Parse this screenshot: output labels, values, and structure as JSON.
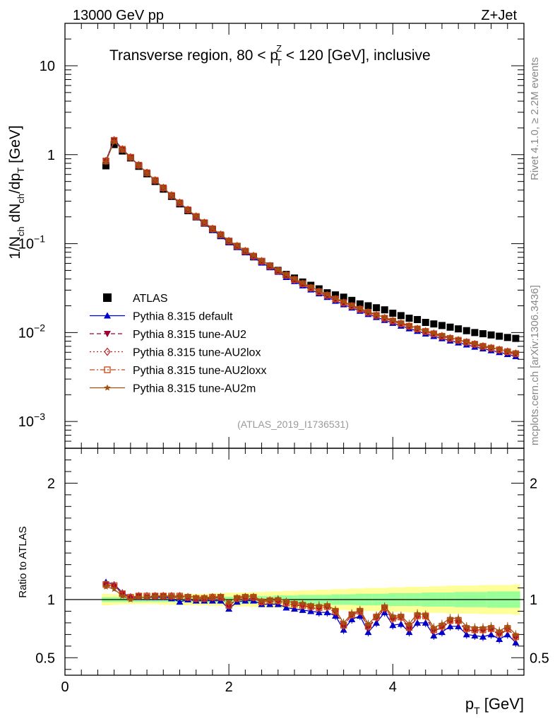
{
  "chart_data": [
    {
      "type": "scatter",
      "panel": "main",
      "yscale": "log",
      "xlim": [
        0,
        5.6
      ],
      "ylim": [
        0.0005,
        30
      ],
      "top_left_label": "13000 GeV pp",
      "top_right_label": "Z+Jet",
      "title_parts": [
        "Transverse region, 80 < p",
        "Z",
        "T",
        " < 120 [GeV], inclusive"
      ],
      "ylabel_parts": [
        "1/N",
        "ch",
        " dN",
        "ch",
        "/dp",
        "T",
        " [GeV]"
      ],
      "yticks": [
        {
          "value": 0.001,
          "base": "10",
          "exp": "−3"
        },
        {
          "value": 0.01,
          "base": "10",
          "exp": "−2"
        },
        {
          "value": 0.1,
          "base": "10",
          "exp": "−1"
        },
        {
          "value": 1,
          "base": "1",
          "exp": ""
        },
        {
          "value": 10,
          "base": "10",
          "exp": ""
        }
      ],
      "analysis_id": "(ATLAS_2019_I1736531)",
      "side_text_top": "Rivet 4.1.0, ≥ 2.2M events",
      "side_text_bottom": "mcplots.cern.ch [arXiv:1306.3436]",
      "legend": [
        {
          "label": "ATLAS",
          "color": "#000000",
          "marker": "square",
          "line": "none"
        },
        {
          "label": "Pythia 8.315 default",
          "color": "#0000cc",
          "marker": "triangle-up",
          "line": "solid"
        },
        {
          "label": "Pythia 8.315 tune-AU2",
          "color": "#990033",
          "marker": "triangle-down",
          "line": "dashed"
        },
        {
          "label": "Pythia 8.315 tune-AU2lox",
          "color": "#bb2222",
          "marker": "diamond-open",
          "line": "dotted"
        },
        {
          "label": "Pythia 8.315 tune-AU2loxx",
          "color": "#cc4411",
          "marker": "square-open",
          "line": "dashdot"
        },
        {
          "label": "Pythia 8.315 tune-AU2m",
          "color": "#a05010",
          "marker": "star",
          "line": "solid"
        }
      ],
      "x": [
        0.5,
        0.6,
        0.7,
        0.8,
        0.9,
        1.0,
        1.1,
        1.2,
        1.3,
        1.4,
        1.5,
        1.6,
        1.7,
        1.8,
        1.9,
        2.0,
        2.1,
        2.2,
        2.3,
        2.4,
        2.5,
        2.6,
        2.7,
        2.8,
        2.9,
        3.0,
        3.1,
        3.2,
        3.3,
        3.4,
        3.5,
        3.6,
        3.7,
        3.8,
        3.9,
        4.0,
        4.1,
        4.2,
        4.3,
        4.4,
        4.5,
        4.6,
        4.7,
        4.8,
        4.9,
        5.0,
        5.1,
        5.2,
        5.3,
        5.4,
        5.5
      ],
      "series": [
        {
          "name": "ATLAS",
          "values": [
            0.75,
            1.3,
            1.1,
            0.92,
            0.74,
            0.61,
            0.5,
            0.41,
            0.34,
            0.28,
            0.235,
            0.2,
            0.17,
            0.144,
            0.123,
            0.106,
            0.093,
            0.081,
            0.071,
            0.063,
            0.056,
            0.05,
            0.045,
            0.041,
            0.037,
            0.034,
            0.031,
            0.028,
            0.0265,
            0.025,
            0.023,
            0.021,
            0.02,
            0.019,
            0.018,
            0.0165,
            0.0155,
            0.0145,
            0.014,
            0.013,
            0.0125,
            0.012,
            0.0115,
            0.011,
            0.0105,
            0.01,
            0.0097,
            0.0094,
            0.0091,
            0.0088,
            0.0086
          ]
        },
        {
          "name": "Pythia 8.315 default",
          "values": [
            0.86,
            1.48,
            1.16,
            0.94,
            0.76,
            0.625,
            0.512,
            0.42,
            0.345,
            0.283,
            0.236,
            0.198,
            0.168,
            0.143,
            0.122,
            0.103,
            0.091,
            0.08,
            0.07,
            0.061,
            0.054,
            0.048,
            0.042,
            0.0378,
            0.0338,
            0.0304,
            0.0275,
            0.025,
            0.0227,
            0.0207,
            0.019,
            0.0175,
            0.0161,
            0.0149,
            0.0138,
            0.0128,
            0.0119,
            0.0111,
            0.0104,
            0.0097,
            0.0091,
            0.0086,
            0.0081,
            0.0077,
            0.0073,
            0.0069,
            0.0066,
            0.0063,
            0.006,
            0.0057,
            0.0054
          ]
        },
        {
          "name": "Pythia 8.315 tune-AU2",
          "values": [
            0.84,
            1.44,
            1.14,
            0.93,
            0.76,
            0.625,
            0.514,
            0.423,
            0.348,
            0.287,
            0.239,
            0.201,
            0.171,
            0.146,
            0.125,
            0.106,
            0.0935,
            0.082,
            0.072,
            0.063,
            0.0555,
            0.049,
            0.0435,
            0.039,
            0.035,
            0.0315,
            0.0285,
            0.026,
            0.0236,
            0.0215,
            0.0197,
            0.0181,
            0.0167,
            0.0155,
            0.0144,
            0.0134,
            0.0125,
            0.0117,
            0.0109,
            0.0102,
            0.0096,
            0.009,
            0.0085,
            0.0081,
            0.0077,
            0.0073,
            0.0069,
            0.0066,
            0.0063,
            0.006,
            0.0057
          ]
        },
        {
          "name": "Pythia 8.315 tune-AU2lox",
          "values": [
            0.85,
            1.45,
            1.15,
            0.935,
            0.762,
            0.627,
            0.515,
            0.424,
            0.349,
            0.288,
            0.24,
            0.202,
            0.172,
            0.147,
            0.126,
            0.107,
            0.094,
            0.0825,
            0.0725,
            0.0635,
            0.056,
            0.0495,
            0.044,
            0.0394,
            0.0354,
            0.0318,
            0.0288,
            0.0262,
            0.0238,
            0.0217,
            0.0199,
            0.0183,
            0.0169,
            0.0156,
            0.0145,
            0.0135,
            0.0126,
            0.0118,
            0.011,
            0.0103,
            0.0097,
            0.0091,
            0.0086,
            0.0082,
            0.0078,
            0.0074,
            0.007,
            0.0067,
            0.0064,
            0.0061,
            0.0058
          ]
        },
        {
          "name": "Pythia 8.315 tune-AU2loxx",
          "values": [
            0.85,
            1.45,
            1.15,
            0.935,
            0.762,
            0.627,
            0.515,
            0.424,
            0.349,
            0.288,
            0.24,
            0.202,
            0.172,
            0.147,
            0.126,
            0.107,
            0.094,
            0.0825,
            0.0725,
            0.0635,
            0.056,
            0.0495,
            0.044,
            0.0394,
            0.0354,
            0.0318,
            0.0288,
            0.0262,
            0.0238,
            0.0217,
            0.0199,
            0.0183,
            0.0169,
            0.0156,
            0.0145,
            0.0135,
            0.0126,
            0.0118,
            0.011,
            0.0103,
            0.0097,
            0.0091,
            0.0086,
            0.0082,
            0.0078,
            0.0074,
            0.007,
            0.0067,
            0.0064,
            0.0061,
            0.0058
          ]
        },
        {
          "name": "Pythia 8.315 tune-AU2m",
          "values": [
            0.83,
            1.42,
            1.13,
            0.925,
            0.758,
            0.624,
            0.514,
            0.424,
            0.35,
            0.289,
            0.241,
            0.203,
            0.173,
            0.148,
            0.127,
            0.108,
            0.095,
            0.0835,
            0.0735,
            0.0645,
            0.057,
            0.0505,
            0.045,
            0.0402,
            0.0361,
            0.0325,
            0.0294,
            0.0267,
            0.0243,
            0.0222,
            0.0203,
            0.0187,
            0.0172,
            0.0159,
            0.0148,
            0.0138,
            0.0129,
            0.012,
            0.0112,
            0.0105,
            0.0099,
            0.0093,
            0.0088,
            0.0083,
            0.0079,
            0.0075,
            0.0071,
            0.0068,
            0.0065,
            0.0062,
            0.0059
          ]
        }
      ]
    },
    {
      "type": "scatter",
      "panel": "ratio",
      "xlim": [
        0,
        5.6
      ],
      "ylim": [
        0.35,
        2.3
      ],
      "ylabel": "Ratio to ATLAS",
      "xlabel_parts": [
        "p",
        "T",
        " [GeV]"
      ],
      "xticks": [
        {
          "value": 0,
          "label": "0"
        },
        {
          "value": 2,
          "label": "2"
        },
        {
          "value": 4,
          "label": "4"
        }
      ],
      "yticks": [
        {
          "value": 0.5,
          "label": "0.5"
        },
        {
          "value": 1,
          "label": "1"
        },
        {
          "value": 2,
          "label": "2"
        }
      ],
      "reference_line": 1,
      "band_inner_color": "#99ff99",
      "band_outer_color": "#ffff99",
      "x": [
        0.5,
        0.6,
        0.7,
        0.8,
        0.9,
        1.0,
        1.1,
        1.2,
        1.3,
        1.4,
        1.5,
        1.6,
        1.7,
        1.8,
        1.9,
        2.0,
        2.1,
        2.2,
        2.3,
        2.4,
        2.5,
        2.6,
        2.7,
        2.8,
        2.9,
        3.0,
        3.1,
        3.2,
        3.3,
        3.4,
        3.5,
        3.6,
        3.7,
        3.8,
        3.9,
        4.0,
        4.1,
        4.2,
        4.3,
        4.4,
        4.5,
        4.6,
        4.7,
        4.8,
        4.9,
        5.0,
        5.1,
        5.2,
        5.3,
        5.4,
        5.5
      ],
      "band_stat": [
        0.02,
        0.02,
        0.02,
        0.02,
        0.02,
        0.02,
        0.02,
        0.02,
        0.02,
        0.02,
        0.02,
        0.02,
        0.025,
        0.025,
        0.025,
        0.025,
        0.03,
        0.03,
        0.03,
        0.03,
        0.03,
        0.035,
        0.035,
        0.035,
        0.04,
        0.04,
        0.04,
        0.04,
        0.045,
        0.045,
        0.045,
        0.05,
        0.05,
        0.05,
        0.05,
        0.055,
        0.055,
        0.055,
        0.055,
        0.06,
        0.06,
        0.06,
        0.06,
        0.065,
        0.065,
        0.065,
        0.065,
        0.07,
        0.07,
        0.07,
        0.07
      ],
      "band_total": [
        0.05,
        0.045,
        0.04,
        0.04,
        0.04,
        0.04,
        0.04,
        0.045,
        0.045,
        0.045,
        0.05,
        0.05,
        0.05,
        0.055,
        0.055,
        0.06,
        0.06,
        0.06,
        0.065,
        0.065,
        0.07,
        0.07,
        0.075,
        0.075,
        0.08,
        0.08,
        0.085,
        0.085,
        0.09,
        0.09,
        0.095,
        0.095,
        0.1,
        0.1,
        0.1,
        0.105,
        0.105,
        0.11,
        0.11,
        0.11,
        0.115,
        0.115,
        0.12,
        0.12,
        0.12,
        0.12,
        0.125,
        0.125,
        0.125,
        0.125,
        0.13
      ],
      "series": [
        {
          "name": "Pythia 8.315 default",
          "values": [
            1.15,
            1.13,
            1.06,
            1.02,
            1.02,
            1.02,
            1.02,
            1.02,
            1.01,
            0.98,
            1.0,
            0.99,
            0.99,
            0.99,
            0.99,
            0.92,
            0.98,
            0.99,
            0.99,
            0.96,
            0.96,
            0.96,
            0.93,
            0.92,
            0.91,
            0.9,
            0.89,
            0.89,
            0.86,
            0.74,
            0.83,
            0.86,
            0.72,
            0.8,
            0.89,
            0.78,
            0.79,
            0.72,
            0.8,
            0.8,
            0.69,
            0.72,
            0.77,
            0.77,
            0.7,
            0.69,
            0.68,
            0.7,
            0.66,
            0.7,
            0.63
          ]
        },
        {
          "name": "Pythia 8.315 tune-AU2",
          "values": [
            1.12,
            1.11,
            1.05,
            1.01,
            1.03,
            1.02,
            1.03,
            1.03,
            1.02,
            1.02,
            1.02,
            1.01,
            1.01,
            1.01,
            1.02,
            0.94,
            1.01,
            1.01,
            1.01,
            0.98,
            0.99,
            0.98,
            0.97,
            0.95,
            0.95,
            0.93,
            0.92,
            0.93,
            0.89,
            0.77,
            0.87,
            0.89,
            0.76,
            0.84,
            0.92,
            0.83,
            0.84,
            0.75,
            0.85,
            0.85,
            0.73,
            0.76,
            0.81,
            0.8,
            0.74,
            0.73,
            0.73,
            0.74,
            0.7,
            0.74,
            0.67
          ]
        },
        {
          "name": "Pythia 8.315 tune-AU2lox",
          "values": [
            1.13,
            1.12,
            1.05,
            1.02,
            1.03,
            1.03,
            1.03,
            1.03,
            1.03,
            1.03,
            1.02,
            1.01,
            1.01,
            1.02,
            1.02,
            0.95,
            1.01,
            1.02,
            1.02,
            0.98,
            0.99,
            0.99,
            0.97,
            0.96,
            0.95,
            0.94,
            0.93,
            0.94,
            0.9,
            0.78,
            0.87,
            0.9,
            0.77,
            0.85,
            0.93,
            0.84,
            0.85,
            0.76,
            0.86,
            0.86,
            0.74,
            0.77,
            0.82,
            0.82,
            0.75,
            0.74,
            0.74,
            0.75,
            0.71,
            0.75,
            0.68
          ]
        },
        {
          "name": "Pythia 8.315 tune-AU2loxx",
          "values": [
            1.13,
            1.12,
            1.05,
            1.02,
            1.03,
            1.03,
            1.03,
            1.03,
            1.03,
            1.03,
            1.02,
            1.01,
            1.01,
            1.02,
            1.02,
            0.95,
            1.01,
            1.02,
            1.02,
            0.98,
            0.99,
            0.99,
            0.97,
            0.96,
            0.95,
            0.94,
            0.93,
            0.94,
            0.9,
            0.78,
            0.87,
            0.9,
            0.77,
            0.85,
            0.93,
            0.84,
            0.85,
            0.76,
            0.86,
            0.86,
            0.74,
            0.77,
            0.82,
            0.82,
            0.75,
            0.74,
            0.74,
            0.75,
            0.71,
            0.75,
            0.68
          ]
        },
        {
          "name": "Pythia 8.315 tune-AU2m",
          "values": [
            1.11,
            1.09,
            1.03,
            1.0,
            1.02,
            1.02,
            1.03,
            1.03,
            1.03,
            1.03,
            1.03,
            1.02,
            1.02,
            1.02,
            1.03,
            0.98,
            1.02,
            1.03,
            1.03,
            0.99,
            1.0,
            1.01,
            0.99,
            0.97,
            0.97,
            0.95,
            0.95,
            0.95,
            0.91,
            0.8,
            0.88,
            0.91,
            0.79,
            0.86,
            0.94,
            0.86,
            0.86,
            0.79,
            0.88,
            0.87,
            0.76,
            0.79,
            0.84,
            0.84,
            0.77,
            0.76,
            0.76,
            0.77,
            0.73,
            0.77,
            0.7
          ]
        }
      ]
    }
  ]
}
